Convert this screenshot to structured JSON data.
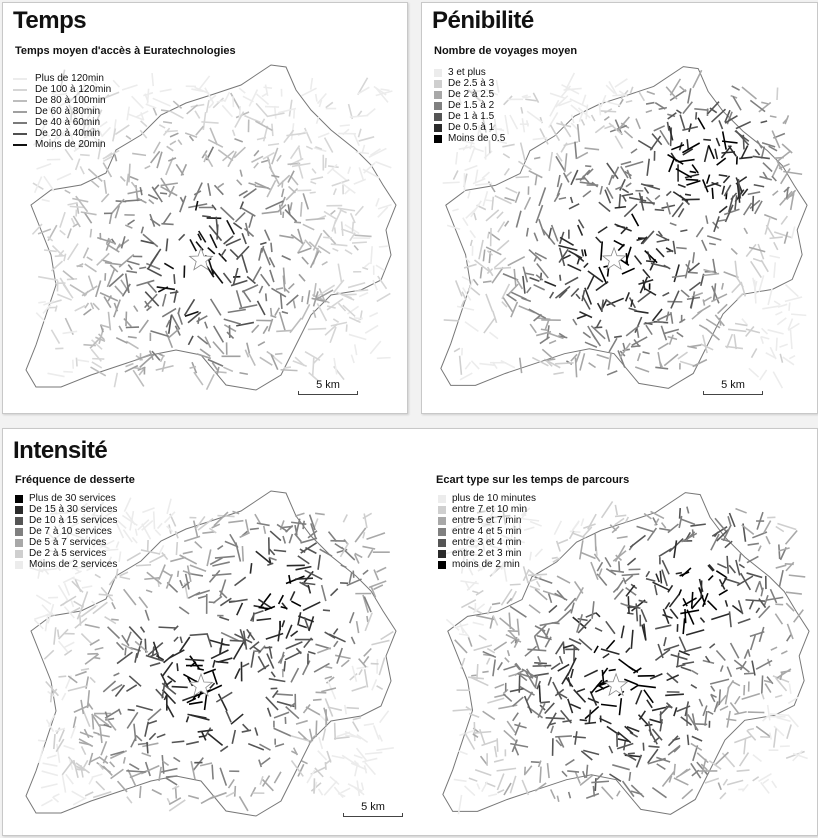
{
  "panels": [
    {
      "title": "Temps",
      "subtitle": "Temps moyen d'accès à Euratechnologies",
      "legend_style": "line",
      "legend": [
        {
          "label": "Plus de 120min",
          "color": "#ececec"
        },
        {
          "label": "De 100 à 120min",
          "color": "#d6d6d6"
        },
        {
          "label": "De 80 à 100min",
          "color": "#bdbdbd"
        },
        {
          "label": "De 60 à 80min",
          "color": "#a0a0a0"
        },
        {
          "label": "De 40 à 60min",
          "color": "#7a7a7a"
        },
        {
          "label": "De 20 à 40min",
          "color": "#505050"
        },
        {
          "label": "Moins de 20min",
          "color": "#111111"
        }
      ],
      "scale_label": "5 km"
    },
    {
      "title": "Pénibilité",
      "subtitle": "Nombre de voyages moyen",
      "legend_style": "box",
      "legend": [
        {
          "label": "3 et plus",
          "color": "#ececec"
        },
        {
          "label": "De 2.5 à 3",
          "color": "#cfcfcf"
        },
        {
          "label": "De 2 à 2.5",
          "color": "#a8a8a8"
        },
        {
          "label": "De 1.5 à 2",
          "color": "#808080"
        },
        {
          "label": "De 1 à 1.5",
          "color": "#555555"
        },
        {
          "label": "De 0.5 à 1",
          "color": "#2a2a2a"
        },
        {
          "label": "Moins de 0.5",
          "color": "#000000"
        }
      ],
      "scale_label": "5 km"
    },
    {
      "title": "Intensité",
      "subtitle": "Fréquence de desserte",
      "legend_style": "box",
      "legend": [
        {
          "label": "Plus de 30 services",
          "color": "#000000"
        },
        {
          "label": "De 15 à 30 services",
          "color": "#2a2a2a"
        },
        {
          "label": "De 10 à 15  services",
          "color": "#555555"
        },
        {
          "label": "De 7 à 10 services",
          "color": "#808080"
        },
        {
          "label": "De 5 à 7 services",
          "color": "#a8a8a8"
        },
        {
          "label": "De 2 à 5 services",
          "color": "#cfcfcf"
        },
        {
          "label": "Moins de 2 services",
          "color": "#ececec"
        }
      ],
      "scale_label": "5 km"
    },
    {
      "title": "",
      "subtitle": "Ecart type sur les temps de parcours",
      "legend_style": "box",
      "legend": [
        {
          "label": "plus de 10 minutes",
          "color": "#ececec"
        },
        {
          "label": "entre 7 et 10 min",
          "color": "#cfcfcf"
        },
        {
          "label": "entre 5 et 7 min",
          "color": "#a8a8a8"
        },
        {
          "label": "entre 4 et 5 min",
          "color": "#808080"
        },
        {
          "label": "entre 3 et 4 min",
          "color": "#555555"
        },
        {
          "label": "entre 2 et 3 min",
          "color": "#2a2a2a"
        },
        {
          "label": "moins de 2 min",
          "color": "#000000"
        }
      ],
      "scale_label": ""
    }
  ]
}
